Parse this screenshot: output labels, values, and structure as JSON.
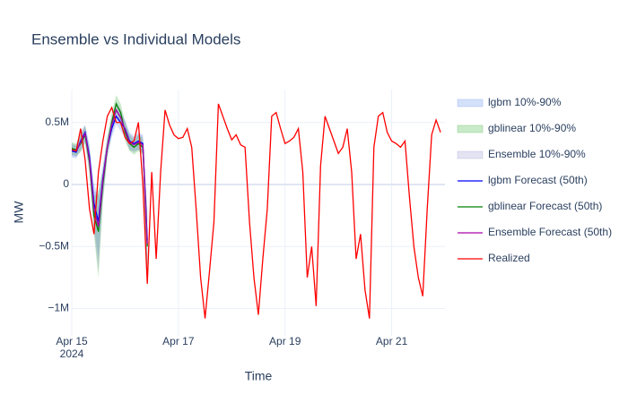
{
  "chart_data": {
    "type": "line",
    "title": "Ensemble vs Individual Models",
    "x_label": "Time",
    "y_label": "MW",
    "xlim": [
      "2024-04-15T00:00",
      "2024-04-22T00:00"
    ],
    "ylim": [
      -1220000,
      765000
    ],
    "xticks": [
      {
        "value": "2024-04-15T00:00",
        "label": "Apr 15\n2024"
      },
      {
        "value": "2024-04-17T00:00",
        "label": "Apr 17"
      },
      {
        "value": "2024-04-19T00:00",
        "label": "Apr 19"
      },
      {
        "value": "2024-04-21T00:00",
        "label": "Apr 21"
      }
    ],
    "yticks": [
      {
        "value": 500000,
        "label": "0.5M"
      },
      0,
      {
        "value": -500000,
        "label": "−0.5M"
      },
      {
        "value": -1000000,
        "label": "−1M"
      }
    ],
    "grid": true,
    "legend": "right",
    "bands": [
      {
        "name": "lgbm 10%-90%",
        "color": "rgba(100,149,237,0.28)",
        "x": [
          "2024-04-15T00:00",
          "2024-04-15T02:00",
          "2024-04-15T04:00",
          "2024-04-15T06:00",
          "2024-04-15T08:00",
          "2024-04-15T10:00",
          "2024-04-15T12:00",
          "2024-04-15T14:00",
          "2024-04-15T16:00",
          "2024-04-15T18:00",
          "2024-04-15T20:00",
          "2024-04-15T22:00",
          "2024-04-16T00:00",
          "2024-04-16T02:00",
          "2024-04-16T04:00",
          "2024-04-16T06:00",
          "2024-04-16T08:00",
          "2024-04-16T10:00"
        ],
        "lower": [
          220000,
          210000,
          280000,
          350000,
          120000,
          -350000,
          -600000,
          -100000,
          220000,
          380000,
          480000,
          430000,
          380000,
          280000,
          270000,
          280000,
          260000,
          -800000
        ],
        "upper": [
          320000,
          310000,
          420000,
          480000,
          320000,
          0,
          -100000,
          150000,
          380000,
          520000,
          620000,
          570000,
          520000,
          420000,
          390000,
          420000,
          400000,
          -200000
        ]
      },
      {
        "name": "gblinear 10%-90%",
        "color": "rgba(60,179,60,0.28)",
        "x": [
          "2024-04-15T00:00",
          "2024-04-15T02:00",
          "2024-04-15T04:00",
          "2024-04-15T06:00",
          "2024-04-15T08:00",
          "2024-04-15T10:00",
          "2024-04-15T12:00",
          "2024-04-15T14:00",
          "2024-04-15T16:00",
          "2024-04-15T18:00",
          "2024-04-15T20:00",
          "2024-04-15T22:00",
          "2024-04-16T00:00",
          "2024-04-16T02:00",
          "2024-04-16T04:00",
          "2024-04-16T06:00",
          "2024-04-16T08:00",
          "2024-04-16T10:00"
        ],
        "lower": [
          240000,
          230000,
          260000,
          330000,
          80000,
          -400000,
          -750000,
          -150000,
          220000,
          420000,
          580000,
          500000,
          350000,
          270000,
          240000,
          270000,
          240000,
          -850000
        ],
        "upper": [
          340000,
          330000,
          400000,
          470000,
          280000,
          -100000,
          -50000,
          120000,
          380000,
          580000,
          720000,
          650000,
          500000,
          400000,
          360000,
          400000,
          370000,
          -250000
        ]
      },
      {
        "name": "Ensemble 10%-90%",
        "color": "rgba(128,128,200,0.22)",
        "x": [
          "2024-04-15T00:00",
          "2024-04-15T02:00",
          "2024-04-15T04:00",
          "2024-04-15T06:00",
          "2024-04-15T08:00",
          "2024-04-15T10:00",
          "2024-04-15T12:00",
          "2024-04-15T14:00",
          "2024-04-15T16:00",
          "2024-04-15T18:00",
          "2024-04-15T20:00",
          "2024-04-15T22:00",
          "2024-04-16T00:00",
          "2024-04-16T02:00",
          "2024-04-16T04:00",
          "2024-04-16T06:00",
          "2024-04-16T08:00",
          "2024-04-16T10:00"
        ],
        "lower": [
          230000,
          220000,
          270000,
          340000,
          100000,
          -380000,
          -700000,
          -120000,
          220000,
          400000,
          530000,
          470000,
          370000,
          280000,
          260000,
          280000,
          250000,
          -820000
        ],
        "upper": [
          330000,
          320000,
          410000,
          480000,
          300000,
          -50000,
          -80000,
          140000,
          380000,
          550000,
          670000,
          610000,
          510000,
          410000,
          380000,
          410000,
          390000,
          -220000
        ]
      }
    ],
    "series": [
      {
        "name": "lgbm Forecast (50th)",
        "color": "#0000ff",
        "x": [
          "2024-04-15T00:00",
          "2024-04-15T02:00",
          "2024-04-15T04:00",
          "2024-04-15T06:00",
          "2024-04-15T08:00",
          "2024-04-15T10:00",
          "2024-04-15T12:00",
          "2024-04-15T14:00",
          "2024-04-15T16:00",
          "2024-04-15T18:00",
          "2024-04-15T20:00",
          "2024-04-15T22:00",
          "2024-04-16T00:00",
          "2024-04-16T02:00",
          "2024-04-16T04:00",
          "2024-04-16T06:00",
          "2024-04-16T08:00",
          "2024-04-16T10:00"
        ],
        "values": [
          270000,
          260000,
          350000,
          420000,
          220000,
          -150000,
          -300000,
          50000,
          300000,
          450000,
          550000,
          500000,
          450000,
          350000,
          330000,
          350000,
          330000,
          -450000
        ]
      },
      {
        "name": "gblinear Forecast (50th)",
        "color": "#008000",
        "x": [
          "2024-04-15T00:00",
          "2024-04-15T02:00",
          "2024-04-15T04:00",
          "2024-04-15T06:00",
          "2024-04-15T08:00",
          "2024-04-15T10:00",
          "2024-04-15T12:00",
          "2024-04-15T14:00",
          "2024-04-15T16:00",
          "2024-04-15T18:00",
          "2024-04-15T20:00",
          "2024-04-15T22:00",
          "2024-04-16T00:00",
          "2024-04-16T02:00",
          "2024-04-16T04:00",
          "2024-04-16T06:00",
          "2024-04-16T08:00",
          "2024-04-16T10:00"
        ],
        "values": [
          290000,
          280000,
          330000,
          400000,
          180000,
          -250000,
          -380000,
          0,
          300000,
          500000,
          650000,
          580000,
          420000,
          330000,
          300000,
          330000,
          300000,
          -500000
        ]
      },
      {
        "name": "Ensemble Forecast (50th)",
        "color": "#aa00aa",
        "x": [
          "2024-04-15T00:00",
          "2024-04-15T02:00",
          "2024-04-15T04:00",
          "2024-04-15T06:00",
          "2024-04-15T08:00",
          "2024-04-15T10:00",
          "2024-04-15T12:00",
          "2024-04-15T14:00",
          "2024-04-15T16:00",
          "2024-04-15T18:00",
          "2024-04-15T20:00",
          "2024-04-15T22:00",
          "2024-04-16T00:00",
          "2024-04-16T02:00",
          "2024-04-16T04:00",
          "2024-04-16T06:00",
          "2024-04-16T08:00",
          "2024-04-16T10:00"
        ],
        "values": [
          280000,
          270000,
          340000,
          410000,
          200000,
          -200000,
          -340000,
          30000,
          300000,
          480000,
          600000,
          540000,
          440000,
          340000,
          320000,
          340000,
          320000,
          -480000
        ]
      },
      {
        "name": "Realized",
        "color": "#ff0000",
        "x": [
          "2024-04-15T00:00",
          "2024-04-15T02:00",
          "2024-04-15T04:00",
          "2024-04-15T06:00",
          "2024-04-15T08:00",
          "2024-04-15T10:00",
          "2024-04-15T12:00",
          "2024-04-15T14:00",
          "2024-04-15T16:00",
          "2024-04-15T18:00",
          "2024-04-15T20:00",
          "2024-04-15T22:00",
          "2024-04-16T00:00",
          "2024-04-16T02:00",
          "2024-04-16T04:00",
          "2024-04-16T06:00",
          "2024-04-16T08:00",
          "2024-04-16T10:00",
          "2024-04-16T12:00",
          "2024-04-16T14:00",
          "2024-04-16T16:00",
          "2024-04-16T18:00",
          "2024-04-16T20:00",
          "2024-04-16T22:00",
          "2024-04-17T00:00",
          "2024-04-17T02:00",
          "2024-04-17T04:00",
          "2024-04-17T06:00",
          "2024-04-17T08:00",
          "2024-04-17T10:00",
          "2024-04-17T12:00",
          "2024-04-17T14:00",
          "2024-04-17T16:00",
          "2024-04-17T18:00",
          "2024-04-17T20:00",
          "2024-04-17T22:00",
          "2024-04-18T00:00",
          "2024-04-18T02:00",
          "2024-04-18T04:00",
          "2024-04-18T06:00",
          "2024-04-18T08:00",
          "2024-04-18T10:00",
          "2024-04-18T12:00",
          "2024-04-18T14:00",
          "2024-04-18T16:00",
          "2024-04-18T18:00",
          "2024-04-18T20:00",
          "2024-04-18T22:00",
          "2024-04-19T00:00",
          "2024-04-19T02:00",
          "2024-04-19T04:00",
          "2024-04-19T06:00",
          "2024-04-19T08:00",
          "2024-04-19T10:00",
          "2024-04-19T12:00",
          "2024-04-19T14:00",
          "2024-04-19T16:00",
          "2024-04-19T18:00",
          "2024-04-19T20:00",
          "2024-04-19T22:00",
          "2024-04-20T00:00",
          "2024-04-20T02:00",
          "2024-04-20T04:00",
          "2024-04-20T06:00",
          "2024-04-20T08:00",
          "2024-04-20T10:00",
          "2024-04-20T12:00",
          "2024-04-20T14:00",
          "2024-04-20T16:00",
          "2024-04-20T18:00",
          "2024-04-20T20:00",
          "2024-04-20T22:00",
          "2024-04-21T00:00",
          "2024-04-21T02:00",
          "2024-04-21T04:00",
          "2024-04-21T06:00",
          "2024-04-21T08:00",
          "2024-04-21T10:00",
          "2024-04-21T12:00",
          "2024-04-21T14:00",
          "2024-04-21T16:00",
          "2024-04-21T18:00",
          "2024-04-21T20:00",
          "2024-04-21T22:00"
        ],
        "values": [
          280000,
          270000,
          450000,
          200000,
          -200000,
          -400000,
          100000,
          350000,
          550000,
          620000,
          500000,
          500000,
          380000,
          330000,
          350000,
          500000,
          0,
          -800000,
          100000,
          -600000,
          100000,
          600000,
          480000,
          400000,
          370000,
          380000,
          450000,
          300000,
          -200000,
          -750000,
          -1080000,
          -700000,
          -300000,
          650000,
          550000,
          450000,
          360000,
          400000,
          320000,
          300000,
          -300000,
          -750000,
          -1050000,
          -600000,
          -200000,
          550000,
          580000,
          450000,
          330000,
          350000,
          380000,
          450000,
          100000,
          -750000,
          -500000,
          -980000,
          150000,
          550000,
          450000,
          350000,
          250000,
          300000,
          450000,
          100000,
          -600000,
          -400000,
          -850000,
          -1080000,
          300000,
          550000,
          580000,
          420000,
          350000,
          330000,
          300000,
          350000,
          -100000,
          -500000,
          -750000,
          -900000,
          -200000,
          400000,
          520000,
          420000
        ]
      }
    ]
  }
}
